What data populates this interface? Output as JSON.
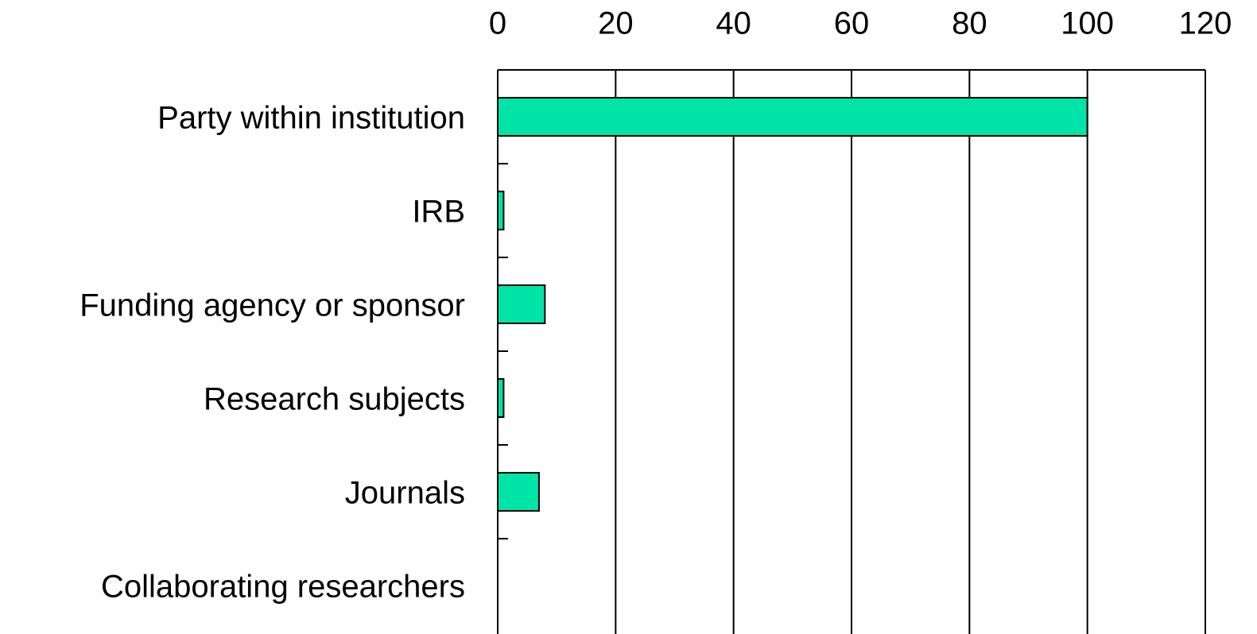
{
  "chart_data": {
    "type": "bar",
    "orientation": "horizontal",
    "categories": [
      "Party within institution",
      "IRB",
      "Funding agency or sponsor",
      "Research subjects",
      "Journals",
      "Collaborating researchers"
    ],
    "values": [
      100,
      1,
      8,
      1,
      7,
      0
    ],
    "color": "#00e4a8",
    "xlim": [
      0,
      120
    ],
    "xticks": [
      0,
      20,
      40,
      60,
      80,
      100,
      120
    ],
    "grid": true
  }
}
